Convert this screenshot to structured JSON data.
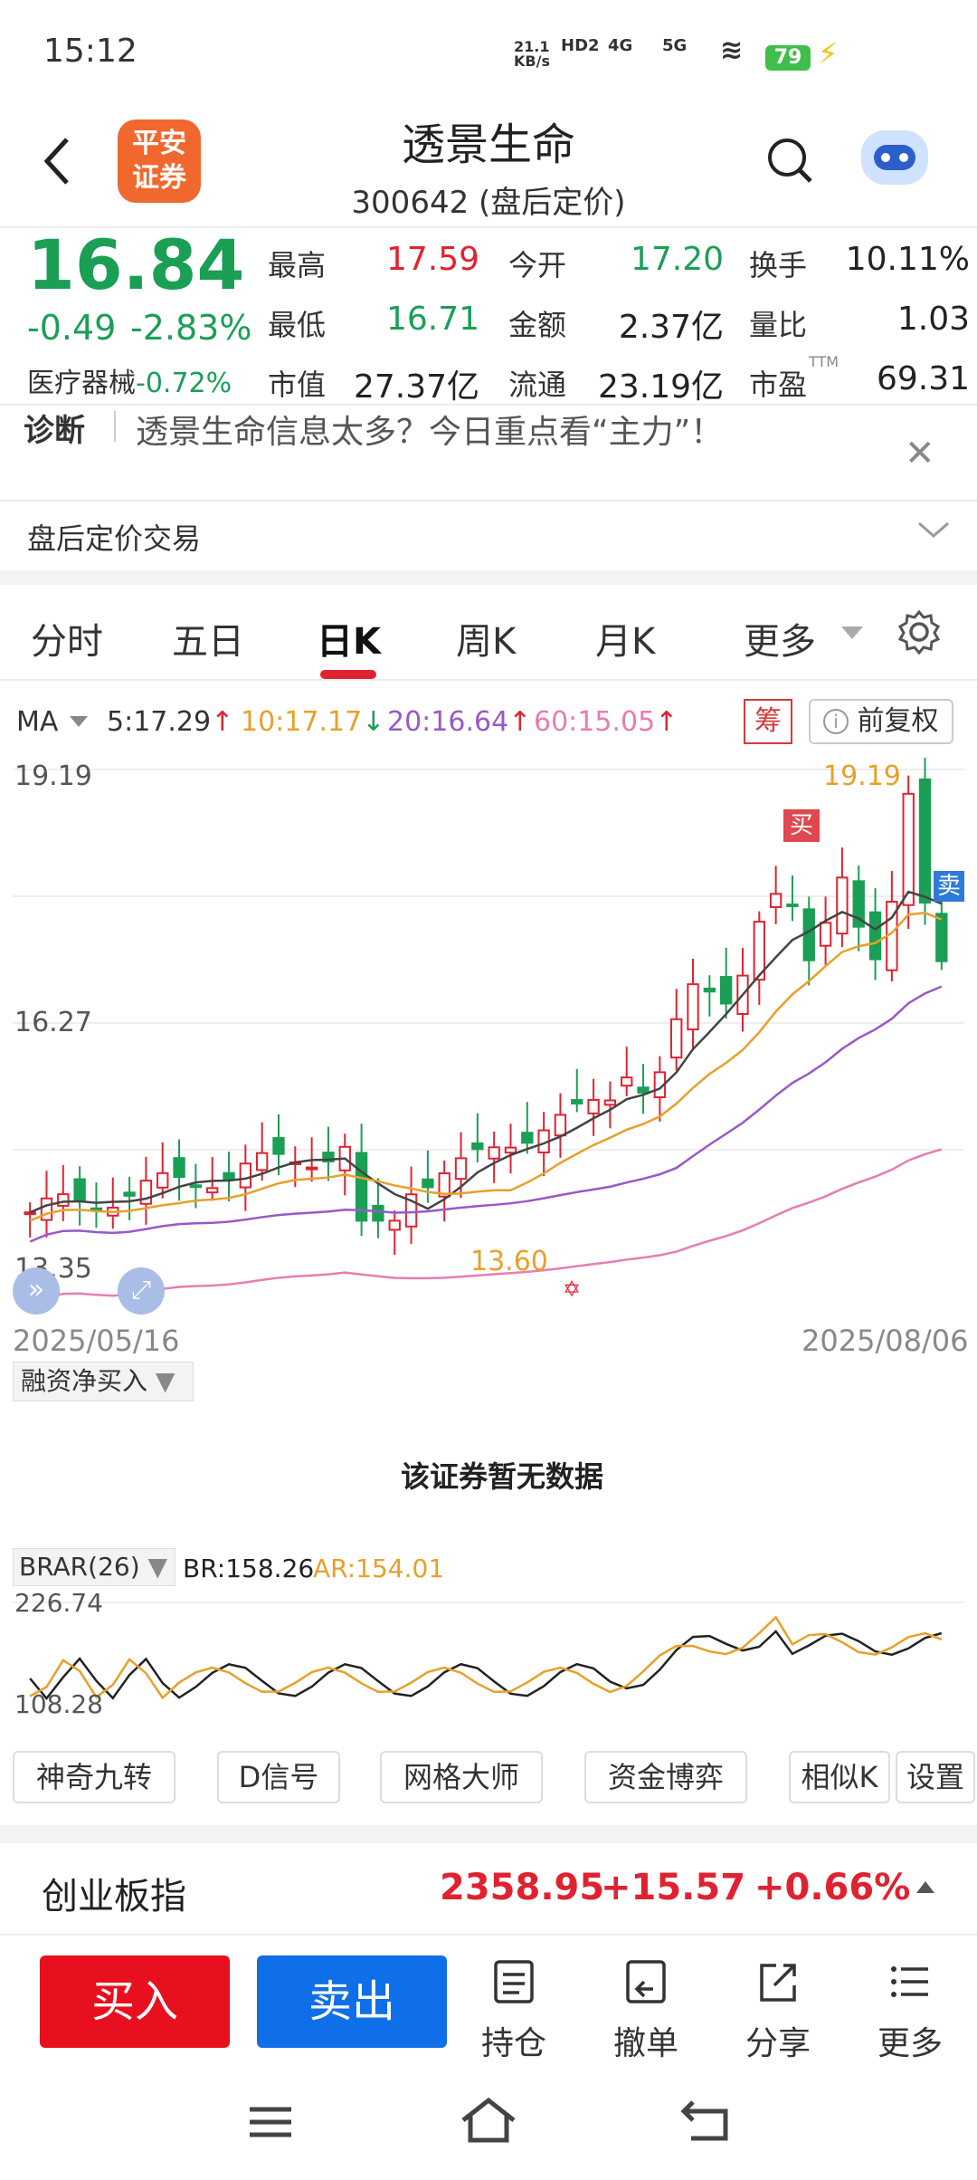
{
  "status": {
    "time": "15:12",
    "net_speed": "21.1\nKB/s",
    "hd": "HD2",
    "sig4g": "4G",
    "sig5g": "5G",
    "battery": "79"
  },
  "header": {
    "logo_line1": "平安",
    "logo_line2": "证券",
    "title": "透景生命",
    "subtitle": "300642 (盘后定价)"
  },
  "quote": {
    "price": "16.84",
    "change": "-0.49",
    "change_pct": "-2.83%",
    "industry_name": "医疗器械",
    "industry_pct": "-0.72%",
    "fields": [
      {
        "label": "最高",
        "value": "17.59",
        "color": "#e02230"
      },
      {
        "label": "今开",
        "value": "17.20",
        "color": "#1a9f55"
      },
      {
        "label": "换手",
        "value": "10.11%",
        "color": "#222"
      },
      {
        "label": "最低",
        "value": "16.71",
        "color": "#1a9f55"
      },
      {
        "label": "金额",
        "value": "2.37亿",
        "color": "#222"
      },
      {
        "label": "量比",
        "value": "1.03",
        "color": "#222"
      },
      {
        "label": "市值",
        "value": "27.37亿",
        "color": "#222"
      },
      {
        "label": "流通",
        "value": "23.19亿",
        "color": "#222"
      },
      {
        "label": "市盈",
        "value": "69.31",
        "color": "#222",
        "sup": "TTM"
      }
    ]
  },
  "diagnosis": {
    "tag": "诊断",
    "text": "透景生命信息太多？今日重点看“主力”！"
  },
  "after_hours": {
    "label": "盘后定价交易"
  },
  "tabs": [
    "分时",
    "五日",
    "日K",
    "周K",
    "月K",
    "更多"
  ],
  "ma": {
    "label": "MA",
    "ma5": "5:17.29",
    "ma10": "10:17.17",
    "ma20": "20:16.64",
    "ma60": "60:15.05",
    "chou": "筹",
    "fq": "前复权"
  },
  "chart": {
    "y_top": "19.19",
    "y_mid": "16.27",
    "y_low": "13.35",
    "high_mark": "19.19",
    "low_mark": "13.60",
    "buy": "买",
    "sell": "卖",
    "date_start": "2025/05/16",
    "date_end": "2025/08/06"
  },
  "margin": {
    "selector": "融资净买入",
    "nodata": "该证券暂无数据"
  },
  "brar": {
    "selector": "BRAR(26)",
    "br": "BR:158.26",
    "ar": "AR:154.01",
    "y_top": "226.74",
    "y_low": "108.28"
  },
  "tools": [
    "神奇九转",
    "D信号",
    "网格大师",
    "资金博弈",
    "相似K",
    "设置"
  ],
  "index": {
    "name": "创业板指",
    "value": "2358.95",
    "change": "+15.57",
    "pct": "+0.66%"
  },
  "bottom": {
    "buy": "买入",
    "sell": "卖出",
    "actions": [
      "持仓",
      "撤单",
      "分享",
      "更多"
    ]
  },
  "colors": {
    "up": "#e02230",
    "down": "#1a9f55",
    "ma5": "#444444",
    "ma10": "#e8a02a",
    "ma20": "#9a58c8",
    "ma60": "#e87db0"
  }
}
